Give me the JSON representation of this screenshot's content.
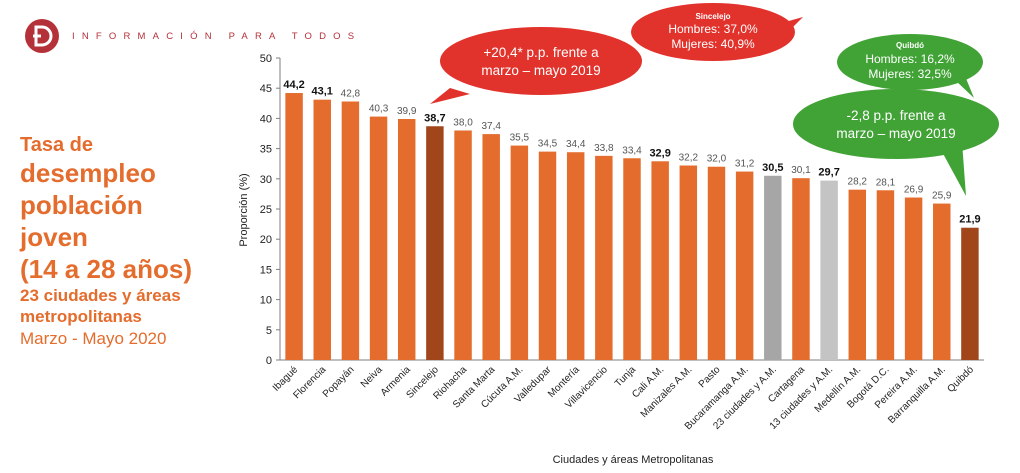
{
  "header": {
    "tagline": "INFORMACIÓN PARA TODOS"
  },
  "side_title": {
    "line1": "Tasa de",
    "line2": "desempleo",
    "line3": "población",
    "line4": "joven",
    "line5": "(14 a 28 años)",
    "line6": "23 ciudades y áreas",
    "line7": "metropolitanas",
    "line8": "Marzo - Mayo 2020"
  },
  "colors": {
    "bar_default": "#e46c2c",
    "bar_highlight": "#a0461a",
    "bar_aggregate": "#a6a6a6",
    "bar_aggregate_13": "#c4c4c4",
    "bubble_red": "#e2322c",
    "bubble_green": "#41a336",
    "title_orange": "#e46c2c",
    "brand_red": "#b5313a"
  },
  "callouts": {
    "sincelejo_change": {
      "line1": "+20,4* p.p. frente a",
      "line2": "marzo – mayo 2019"
    },
    "sincelejo_gender": {
      "title": "Sincelejo",
      "line1": "Hombres: 37,0%",
      "line2": "Mujeres: 40,9%"
    },
    "quibdo_gender": {
      "title": "Quibdó",
      "line1": "Hombres: 16,2%",
      "line2": "Mujeres: 32,5%"
    },
    "quibdo_change": {
      "line1": "-2,8 p.p. frente a",
      "line2": "marzo – mayo 2019"
    }
  },
  "chart_data": {
    "type": "bar",
    "xlabel": "Ciudades y áreas Metropolitanas",
    "ylabel": "Proporción (%)",
    "ylim": [
      0,
      50
    ],
    "yticks": [
      0,
      5,
      10,
      15,
      20,
      25,
      30,
      35,
      40,
      45,
      50
    ],
    "grid": false,
    "categories": [
      "Ibagué",
      "Florencia",
      "Popayán",
      "Neiva",
      "Armenia",
      "Sincelejo",
      "Riohacha",
      "Santa Marta",
      "Cúcuta A.M.",
      "Valledupar",
      "Montería",
      "Villavicencio",
      "Tunja",
      "Cali A.M.",
      "Manizales A.M.",
      "Pasto",
      "Bucaramanga A.M.",
      "23 ciudades y A.M.",
      "Cartagena",
      "13 ciudades y A.M.",
      "Medellín A.M.",
      "Bogotá D.C.",
      "Pereira A.M.",
      "Barranquilla A.M.",
      "Quibdó"
    ],
    "values": [
      44.2,
      43.1,
      42.8,
      40.3,
      39.9,
      38.7,
      38.0,
      37.4,
      35.5,
      34.5,
      34.4,
      33.8,
      33.4,
      32.9,
      32.2,
      32.0,
      31.2,
      30.5,
      30.1,
      29.7,
      28.2,
      28.1,
      26.9,
      25.9,
      21.9
    ],
    "value_labels": [
      "44,2",
      "43,1",
      "42,8",
      "40,3",
      "39,9",
      "38,7",
      "38,0",
      "37,4",
      "35,5",
      "34,5",
      "34,4",
      "33,8",
      "33,4",
      "32,9",
      "32,2",
      "32,0",
      "31,2",
      "30,5",
      "30,1",
      "29,7",
      "28,2",
      "28,1",
      "26,9",
      "25,9",
      "21,9"
    ],
    "bold_labels": [
      "Ibagué",
      "Florencia",
      "Sincelejo",
      "Cali A.M.",
      "23 ciudades y A.M.",
      "13 ciudades y A.M.",
      "Quibdó"
    ],
    "bar_color_roles": [
      "default",
      "default",
      "default",
      "default",
      "default",
      "highlight",
      "default",
      "default",
      "default",
      "default",
      "default",
      "default",
      "default",
      "default",
      "default",
      "default",
      "default",
      "aggregate",
      "default",
      "aggregate_13",
      "default",
      "default",
      "default",
      "default",
      "highlight"
    ]
  }
}
